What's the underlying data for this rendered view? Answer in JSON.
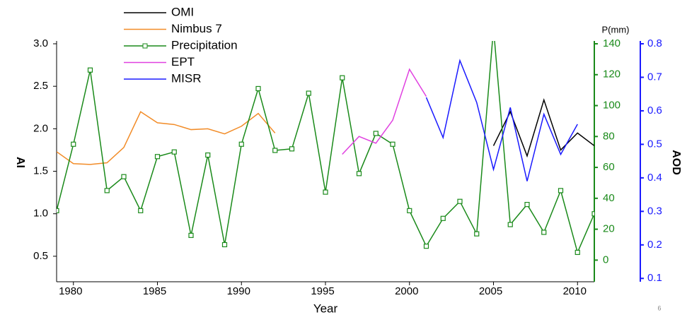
{
  "chart_data": {
    "type": "line",
    "x_label": "Year",
    "y_label": "AI",
    "y2_label": "P(mm)",
    "y3_label": "AOD",
    "footnote": "6",
    "x": [
      1979,
      1980,
      1981,
      1982,
      1983,
      1984,
      1985,
      1986,
      1987,
      1988,
      1989,
      1990,
      1991,
      1992,
      1993,
      1994,
      1995,
      1996,
      1997,
      1998,
      1999,
      2000,
      2001,
      2002,
      2003,
      2004,
      2005,
      2006,
      2007,
      2008,
      2009,
      2010,
      2011
    ],
    "xlim": [
      1979,
      2011
    ],
    "xticks": [
      1980,
      1985,
      1990,
      1995,
      2000,
      2005,
      2010
    ],
    "ylim": [
      0.2,
      3.0
    ],
    "yticks": [
      0.5,
      {
        "value": 1.0,
        "label": "1.0"
      },
      1.5,
      {
        "value": 2.0,
        "label": "2.0"
      },
      2.5,
      {
        "value": 3.0,
        "label": "3.0"
      }
    ],
    "y2lim": [
      -14,
      140
    ],
    "y2ticks": [
      0,
      20,
      40,
      60,
      80,
      100,
      120,
      140
    ],
    "y2color": "#1a8a1a",
    "y3lim": [
      0.09,
      0.8
    ],
    "y3ticks": [
      0.1,
      0.2,
      0.3,
      0.4,
      0.5,
      0.6,
      0.7,
      0.8
    ],
    "y3color": "#1a1aff",
    "series": [
      {
        "name": "OMI",
        "color": "#000000",
        "axis": "y",
        "values": [
          null,
          null,
          null,
          null,
          null,
          null,
          null,
          null,
          null,
          null,
          null,
          null,
          null,
          null,
          null,
          null,
          null,
          null,
          null,
          null,
          null,
          null,
          null,
          null,
          null,
          null,
          1.8,
          2.2,
          1.68,
          2.34,
          1.75,
          1.95,
          1.8
        ]
      },
      {
        "name": "Nimbus 7",
        "color": "#f28c28",
        "axis": "y",
        "values": [
          1.73,
          1.59,
          1.58,
          1.6,
          1.78,
          2.2,
          2.07,
          2.05,
          1.99,
          2.0,
          1.94,
          2.03,
          2.18,
          1.95,
          null,
          null,
          null,
          null,
          null,
          null,
          null,
          null,
          null,
          null,
          null,
          null,
          null,
          null,
          null,
          null,
          null,
          null,
          null
        ]
      },
      {
        "name": "Precipitation",
        "color": "#1a8a1a",
        "axis": "y2",
        "marker": "square",
        "values": [
          32,
          75,
          123,
          45,
          54,
          32,
          67,
          70,
          16,
          68,
          10,
          75,
          111,
          71,
          72,
          108,
          44,
          118,
          56,
          82,
          75,
          32,
          9,
          27,
          38,
          17,
          150,
          23,
          36,
          18,
          45,
          5,
          30
        ]
      },
      {
        "name": "EPT",
        "color": "#e040e0",
        "axis": "y",
        "values": [
          null,
          null,
          null,
          null,
          null,
          null,
          null,
          null,
          null,
          null,
          null,
          null,
          null,
          null,
          null,
          null,
          null,
          1.7,
          1.91,
          1.83,
          2.1,
          2.7,
          2.38,
          null,
          null,
          null,
          null,
          null,
          null,
          null,
          null,
          null,
          null
        ]
      },
      {
        "name": "MISR",
        "color": "#1a1aff",
        "axis": "y3",
        "values": [
          null,
          null,
          null,
          null,
          null,
          null,
          null,
          null,
          null,
          null,
          null,
          null,
          null,
          null,
          null,
          null,
          null,
          null,
          null,
          null,
          null,
          null,
          0.64,
          0.52,
          0.75,
          0.625,
          0.425,
          0.61,
          0.39,
          0.59,
          0.47,
          0.56,
          null
        ]
      }
    ]
  }
}
